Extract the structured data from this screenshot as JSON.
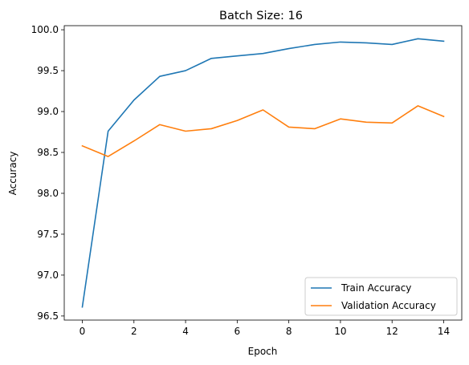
{
  "chart_data": {
    "type": "line",
    "title": "Batch Size: 16",
    "xlabel": "Epoch",
    "ylabel": "Accuracy",
    "x": [
      0,
      1,
      2,
      3,
      4,
      5,
      6,
      7,
      8,
      9,
      10,
      11,
      12,
      13,
      14
    ],
    "xlim": [
      -0.7,
      14.7
    ],
    "ylim": [
      96.45,
      100.05
    ],
    "xticks": [
      0,
      2,
      4,
      6,
      8,
      10,
      12,
      14
    ],
    "yticks": [
      96.5,
      97.0,
      97.5,
      98.0,
      98.5,
      99.0,
      99.5,
      100.0
    ],
    "ytick_labels": [
      "96.5",
      "97.0",
      "97.5",
      "98.0",
      "98.5",
      "99.0",
      "99.5",
      "100.0"
    ],
    "grid": false,
    "legend": "lower-right",
    "series": [
      {
        "name": "Train Accuracy",
        "color": "#1f77b4",
        "values": [
          96.61,
          98.76,
          99.14,
          99.43,
          99.5,
          99.65,
          99.68,
          99.71,
          99.77,
          99.82,
          99.85,
          99.84,
          99.82,
          99.89,
          99.86
        ]
      },
      {
        "name": "Validation Accuracy",
        "color": "#ff7f0e",
        "values": [
          98.58,
          98.45,
          98.64,
          98.84,
          98.76,
          98.79,
          98.89,
          99.02,
          98.81,
          98.79,
          98.91,
          98.87,
          98.86,
          99.07,
          98.94
        ]
      }
    ]
  }
}
